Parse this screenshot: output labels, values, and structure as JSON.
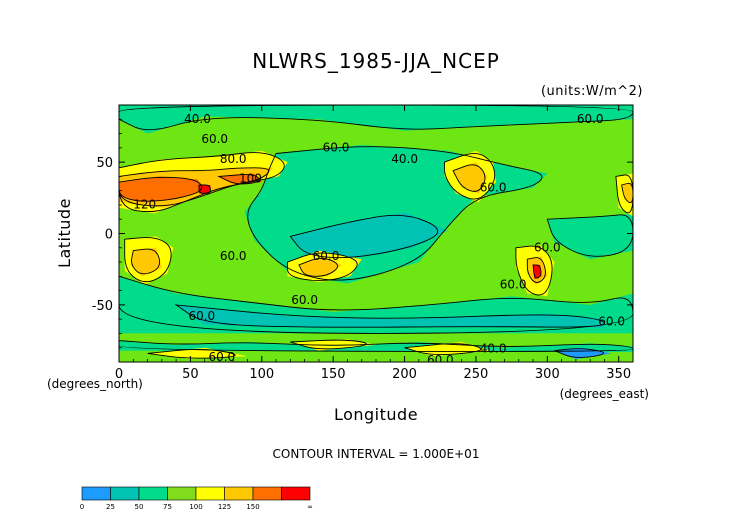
{
  "chart_data": {
    "type": "heatmap",
    "title": "NLWRS_1985-JJA_NCEP",
    "units": "(units:W/m^2)",
    "xlabel": "Longitude",
    "ylabel": "Latitude",
    "x_unit_label": "(degrees_east)",
    "y_unit_label": "(degrees_north)",
    "xlim": [
      0,
      360
    ],
    "ylim": [
      -90,
      90
    ],
    "x_ticks": [
      "0",
      "50",
      "100",
      "150",
      "200",
      "250",
      "300",
      "350"
    ],
    "x_tick_values": [
      0,
      50,
      100,
      150,
      200,
      250,
      300,
      350
    ],
    "y_ticks": [
      "50",
      "0",
      "-50"
    ],
    "y_tick_values": [
      50,
      0,
      -50
    ],
    "contour_interval_text": "CONTOUR INTERVAL = 1.000E+01",
    "contour_labels": [
      {
        "text": "40.0",
        "lon": 55,
        "lat": 80
      },
      {
        "text": "60.0",
        "lon": 67,
        "lat": 66
      },
      {
        "text": "60.0",
        "lon": 152,
        "lat": 60
      },
      {
        "text": "40.0",
        "lon": 200,
        "lat": 52
      },
      {
        "text": "80.0",
        "lon": 80,
        "lat": 52
      },
      {
        "text": "100",
        "lon": 92,
        "lat": 38
      },
      {
        "text": "120",
        "lon": 18,
        "lat": 20
      },
      {
        "text": "60.0",
        "lon": 262,
        "lat": 32
      },
      {
        "text": "60.0",
        "lon": 330,
        "lat": 80
      },
      {
        "text": "60.0",
        "lon": 300,
        "lat": -10
      },
      {
        "text": "60.0",
        "lon": 80,
        "lat": -16
      },
      {
        "text": "60.0",
        "lon": 145,
        "lat": -16
      },
      {
        "text": "60.0",
        "lon": 276,
        "lat": -36
      },
      {
        "text": "60.0",
        "lon": 130,
        "lat": -47
      },
      {
        "text": "60.0",
        "lon": 58,
        "lat": -58
      },
      {
        "text": "60.0",
        "lon": 345,
        "lat": -62
      },
      {
        "text": "60.0",
        "lon": 72,
        "lat": -87
      },
      {
        "text": "60.0",
        "lon": 225,
        "lat": -89
      },
      {
        "text": "40.0",
        "lon": 262,
        "lat": -81
      }
    ],
    "colorbar": {
      "bounds": [
        "0",
        "25",
        "50",
        "75",
        "100",
        "125",
        "150",
        "∞"
      ],
      "colors": [
        "#1e9bff",
        "#00c3b4",
        "#00dc8c",
        "#82dc1e",
        "#ffff00",
        "#ffc800",
        "#ff6e00",
        "#ff0000"
      ]
    },
    "colors": {
      "green": "#6ee614",
      "cyan": "#00dc8c",
      "teal": "#00c3b4",
      "blue": "#1e9bff",
      "yellow": "#ffff00",
      "orange": "#ffc800",
      "darkorange": "#ff6e00",
      "red": "#ff0000"
    },
    "regions": [
      {
        "color": "cyan",
        "pts": [
          [
            0,
            80
          ],
          [
            20,
            70
          ],
          [
            60,
            82
          ],
          [
            140,
            80
          ],
          [
            200,
            72
          ],
          [
            250,
            75
          ],
          [
            320,
            78
          ],
          [
            360,
            80
          ],
          [
            360,
            90
          ],
          [
            0,
            90
          ]
        ]
      },
      {
        "color": "cyan",
        "pts": [
          [
            110,
            56
          ],
          [
            170,
            62
          ],
          [
            230,
            58
          ],
          [
            270,
            48
          ],
          [
            300,
            42
          ],
          [
            290,
            32
          ],
          [
            250,
            26
          ],
          [
            230,
            5
          ],
          [
            210,
            -20
          ],
          [
            160,
            -35
          ],
          [
            120,
            -28
          ],
          [
            95,
            -5
          ],
          [
            88,
            15
          ],
          [
            100,
            30
          ],
          [
            105,
            45
          ]
        ]
      },
      {
        "color": "cyan",
        "pts": [
          [
            300,
            10
          ],
          [
            340,
            12
          ],
          [
            360,
            14
          ],
          [
            360,
            -12
          ],
          [
            330,
            -18
          ],
          [
            305,
            -6
          ]
        ]
      },
      {
        "color": "cyan",
        "pts": [
          [
            0,
            -30
          ],
          [
            40,
            -42
          ],
          [
            90,
            -48
          ],
          [
            150,
            -55
          ],
          [
            220,
            -50
          ],
          [
            275,
            -44
          ],
          [
            330,
            -50
          ],
          [
            360,
            -42
          ],
          [
            360,
            -70
          ],
          [
            0,
            -70
          ]
        ]
      },
      {
        "color": "teal",
        "pts": [
          [
            120,
            -2
          ],
          [
            160,
            8
          ],
          [
            200,
            15
          ],
          [
            230,
            2
          ],
          [
            205,
            -10
          ],
          [
            160,
            -18
          ],
          [
            130,
            -15
          ]
        ]
      },
      {
        "color": "teal",
        "pts": [
          [
            40,
            -50
          ],
          [
            120,
            -58
          ],
          [
            200,
            -60
          ],
          [
            300,
            -56
          ],
          [
            340,
            -60
          ],
          [
            340,
            -66
          ],
          [
            250,
            -65
          ],
          [
            150,
            -66
          ],
          [
            60,
            -64
          ]
        ]
      },
      {
        "color": "green",
        "pts": [
          [
            0,
            -70
          ],
          [
            360,
            -70
          ],
          [
            360,
            -90
          ],
          [
            0,
            -90
          ]
        ]
      },
      {
        "color": "cyan",
        "pts": [
          [
            0,
            -75
          ],
          [
            40,
            -78
          ],
          [
            90,
            -76
          ],
          [
            150,
            -79
          ],
          [
            210,
            -76
          ],
          [
            270,
            -80
          ],
          [
            330,
            -77
          ],
          [
            360,
            -79
          ],
          [
            360,
            -83
          ],
          [
            0,
            -82
          ]
        ]
      },
      {
        "color": "blue",
        "pts": [
          [
            305,
            -82
          ],
          [
            325,
            -80
          ],
          [
            345,
            -84
          ],
          [
            320,
            -88
          ]
        ]
      },
      {
        "color": "yellow",
        "pts": [
          [
            0,
            46
          ],
          [
            30,
            52
          ],
          [
            70,
            54
          ],
          [
            100,
            58
          ],
          [
            118,
            50
          ],
          [
            112,
            40
          ],
          [
            92,
            36
          ],
          [
            70,
            32
          ],
          [
            45,
            22
          ],
          [
            25,
            14
          ],
          [
            0,
            18
          ]
        ]
      },
      {
        "color": "orange",
        "pts": [
          [
            0,
            40
          ],
          [
            30,
            44
          ],
          [
            62,
            44
          ],
          [
            82,
            46
          ],
          [
            108,
            46
          ],
          [
            100,
            38
          ],
          [
            80,
            34
          ],
          [
            58,
            26
          ],
          [
            32,
            18
          ],
          [
            0,
            22
          ]
        ]
      },
      {
        "color": "darkorange",
        "pts": [
          [
            0,
            36
          ],
          [
            28,
            40
          ],
          [
            55,
            38
          ],
          [
            60,
            30
          ],
          [
            40,
            24
          ],
          [
            15,
            22
          ],
          [
            0,
            26
          ]
        ]
      },
      {
        "color": "darkorange",
        "pts": [
          [
            70,
            40
          ],
          [
            95,
            42
          ],
          [
            100,
            36
          ],
          [
            82,
            34
          ]
        ]
      },
      {
        "color": "red",
        "pts": [
          [
            56,
            34
          ],
          [
            64,
            34
          ],
          [
            64,
            28
          ],
          [
            56,
            28
          ]
        ]
      },
      {
        "color": "yellow",
        "pts": [
          [
            228,
            50
          ],
          [
            250,
            58
          ],
          [
            262,
            50
          ],
          [
            264,
            36
          ],
          [
            252,
            22
          ],
          [
            236,
            28
          ],
          [
            228,
            40
          ]
        ]
      },
      {
        "color": "orange",
        "pts": [
          [
            234,
            44
          ],
          [
            250,
            50
          ],
          [
            258,
            40
          ],
          [
            252,
            28
          ],
          [
            240,
            32
          ]
        ]
      },
      {
        "color": "yellow",
        "pts": [
          [
            348,
            40
          ],
          [
            360,
            42
          ],
          [
            360,
            12
          ],
          [
            350,
            18
          ]
        ]
      },
      {
        "color": "orange",
        "pts": [
          [
            352,
            34
          ],
          [
            360,
            36
          ],
          [
            360,
            20
          ],
          [
            354,
            24
          ]
        ]
      },
      {
        "color": "yellow",
        "pts": [
          [
            4,
            -4
          ],
          [
            26,
            -2
          ],
          [
            38,
            -10
          ],
          [
            34,
            -28
          ],
          [
            18,
            -36
          ],
          [
            4,
            -26
          ]
        ]
      },
      {
        "color": "orange",
        "pts": [
          [
            10,
            -12
          ],
          [
            26,
            -10
          ],
          [
            30,
            -24
          ],
          [
            16,
            -30
          ],
          [
            8,
            -22
          ]
        ]
      },
      {
        "color": "yellow",
        "pts": [
          [
            118,
            -20
          ],
          [
            140,
            -12
          ],
          [
            170,
            -18
          ],
          [
            162,
            -30
          ],
          [
            140,
            -34
          ],
          [
            118,
            -30
          ]
        ]
      },
      {
        "color": "orange",
        "pts": [
          [
            126,
            -22
          ],
          [
            142,
            -16
          ],
          [
            156,
            -22
          ],
          [
            146,
            -30
          ],
          [
            130,
            -30
          ]
        ]
      },
      {
        "color": "yellow",
        "pts": [
          [
            278,
            -10
          ],
          [
            295,
            -8
          ],
          [
            305,
            -20
          ],
          [
            300,
            -44
          ],
          [
            286,
            -42
          ],
          [
            278,
            -24
          ]
        ]
      },
      {
        "color": "orange",
        "pts": [
          [
            286,
            -18
          ],
          [
            296,
            -16
          ],
          [
            300,
            -30
          ],
          [
            292,
            -36
          ],
          [
            286,
            -28
          ]
        ]
      },
      {
        "color": "red",
        "pts": [
          [
            290,
            -22
          ],
          [
            295,
            -22
          ],
          [
            296,
            -30
          ],
          [
            291,
            -32
          ]
        ]
      },
      {
        "color": "yellow",
        "pts": [
          [
            120,
            -76
          ],
          [
            160,
            -74
          ],
          [
            180,
            -78
          ],
          [
            140,
            -82
          ]
        ]
      },
      {
        "color": "yellow",
        "pts": [
          [
            200,
            -80
          ],
          [
            240,
            -76
          ],
          [
            260,
            -82
          ],
          [
            220,
            -86
          ]
        ]
      },
      {
        "color": "yellow",
        "pts": [
          [
            20,
            -84
          ],
          [
            60,
            -80
          ],
          [
            90,
            -86
          ],
          [
            50,
            -88
          ]
        ]
      }
    ]
  }
}
